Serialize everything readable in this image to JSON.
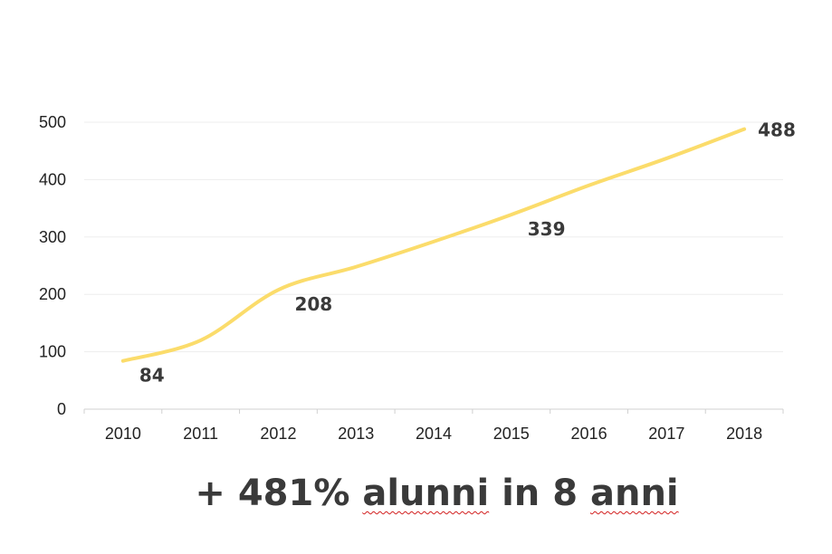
{
  "colors": {
    "series": "#FBDC6B",
    "label_text": "#3a3a3a",
    "tick_text": "#222222",
    "spellcheck_underline": "#d21f1f"
  },
  "chart_data": {
    "type": "line",
    "title": "",
    "xlabel": "",
    "ylabel": "",
    "categories": [
      "2010",
      "2011",
      "2012",
      "2013",
      "2014",
      "2015",
      "2016",
      "2017",
      "2018"
    ],
    "series": [
      {
        "values": [
          84,
          120,
          208,
          248,
          292,
          339,
          390,
          437,
          488
        ]
      }
    ],
    "data_labels": [
      {
        "category": "2010",
        "value": 84,
        "text": "84"
      },
      {
        "category": "2012",
        "value": 208,
        "text": "208"
      },
      {
        "category": "2015",
        "value": 339,
        "text": "339"
      },
      {
        "category": "2018",
        "value": 488,
        "text": "488"
      }
    ],
    "ylim": [
      0,
      500
    ],
    "yticks": [
      "0",
      "100",
      "200",
      "300",
      "400",
      "500"
    ],
    "grid": true,
    "legend": "none",
    "smooth": true
  },
  "caption": {
    "part1": "+ 481% ",
    "part2": "alunni",
    "part3": " in 8 ",
    "part4": "anni"
  }
}
